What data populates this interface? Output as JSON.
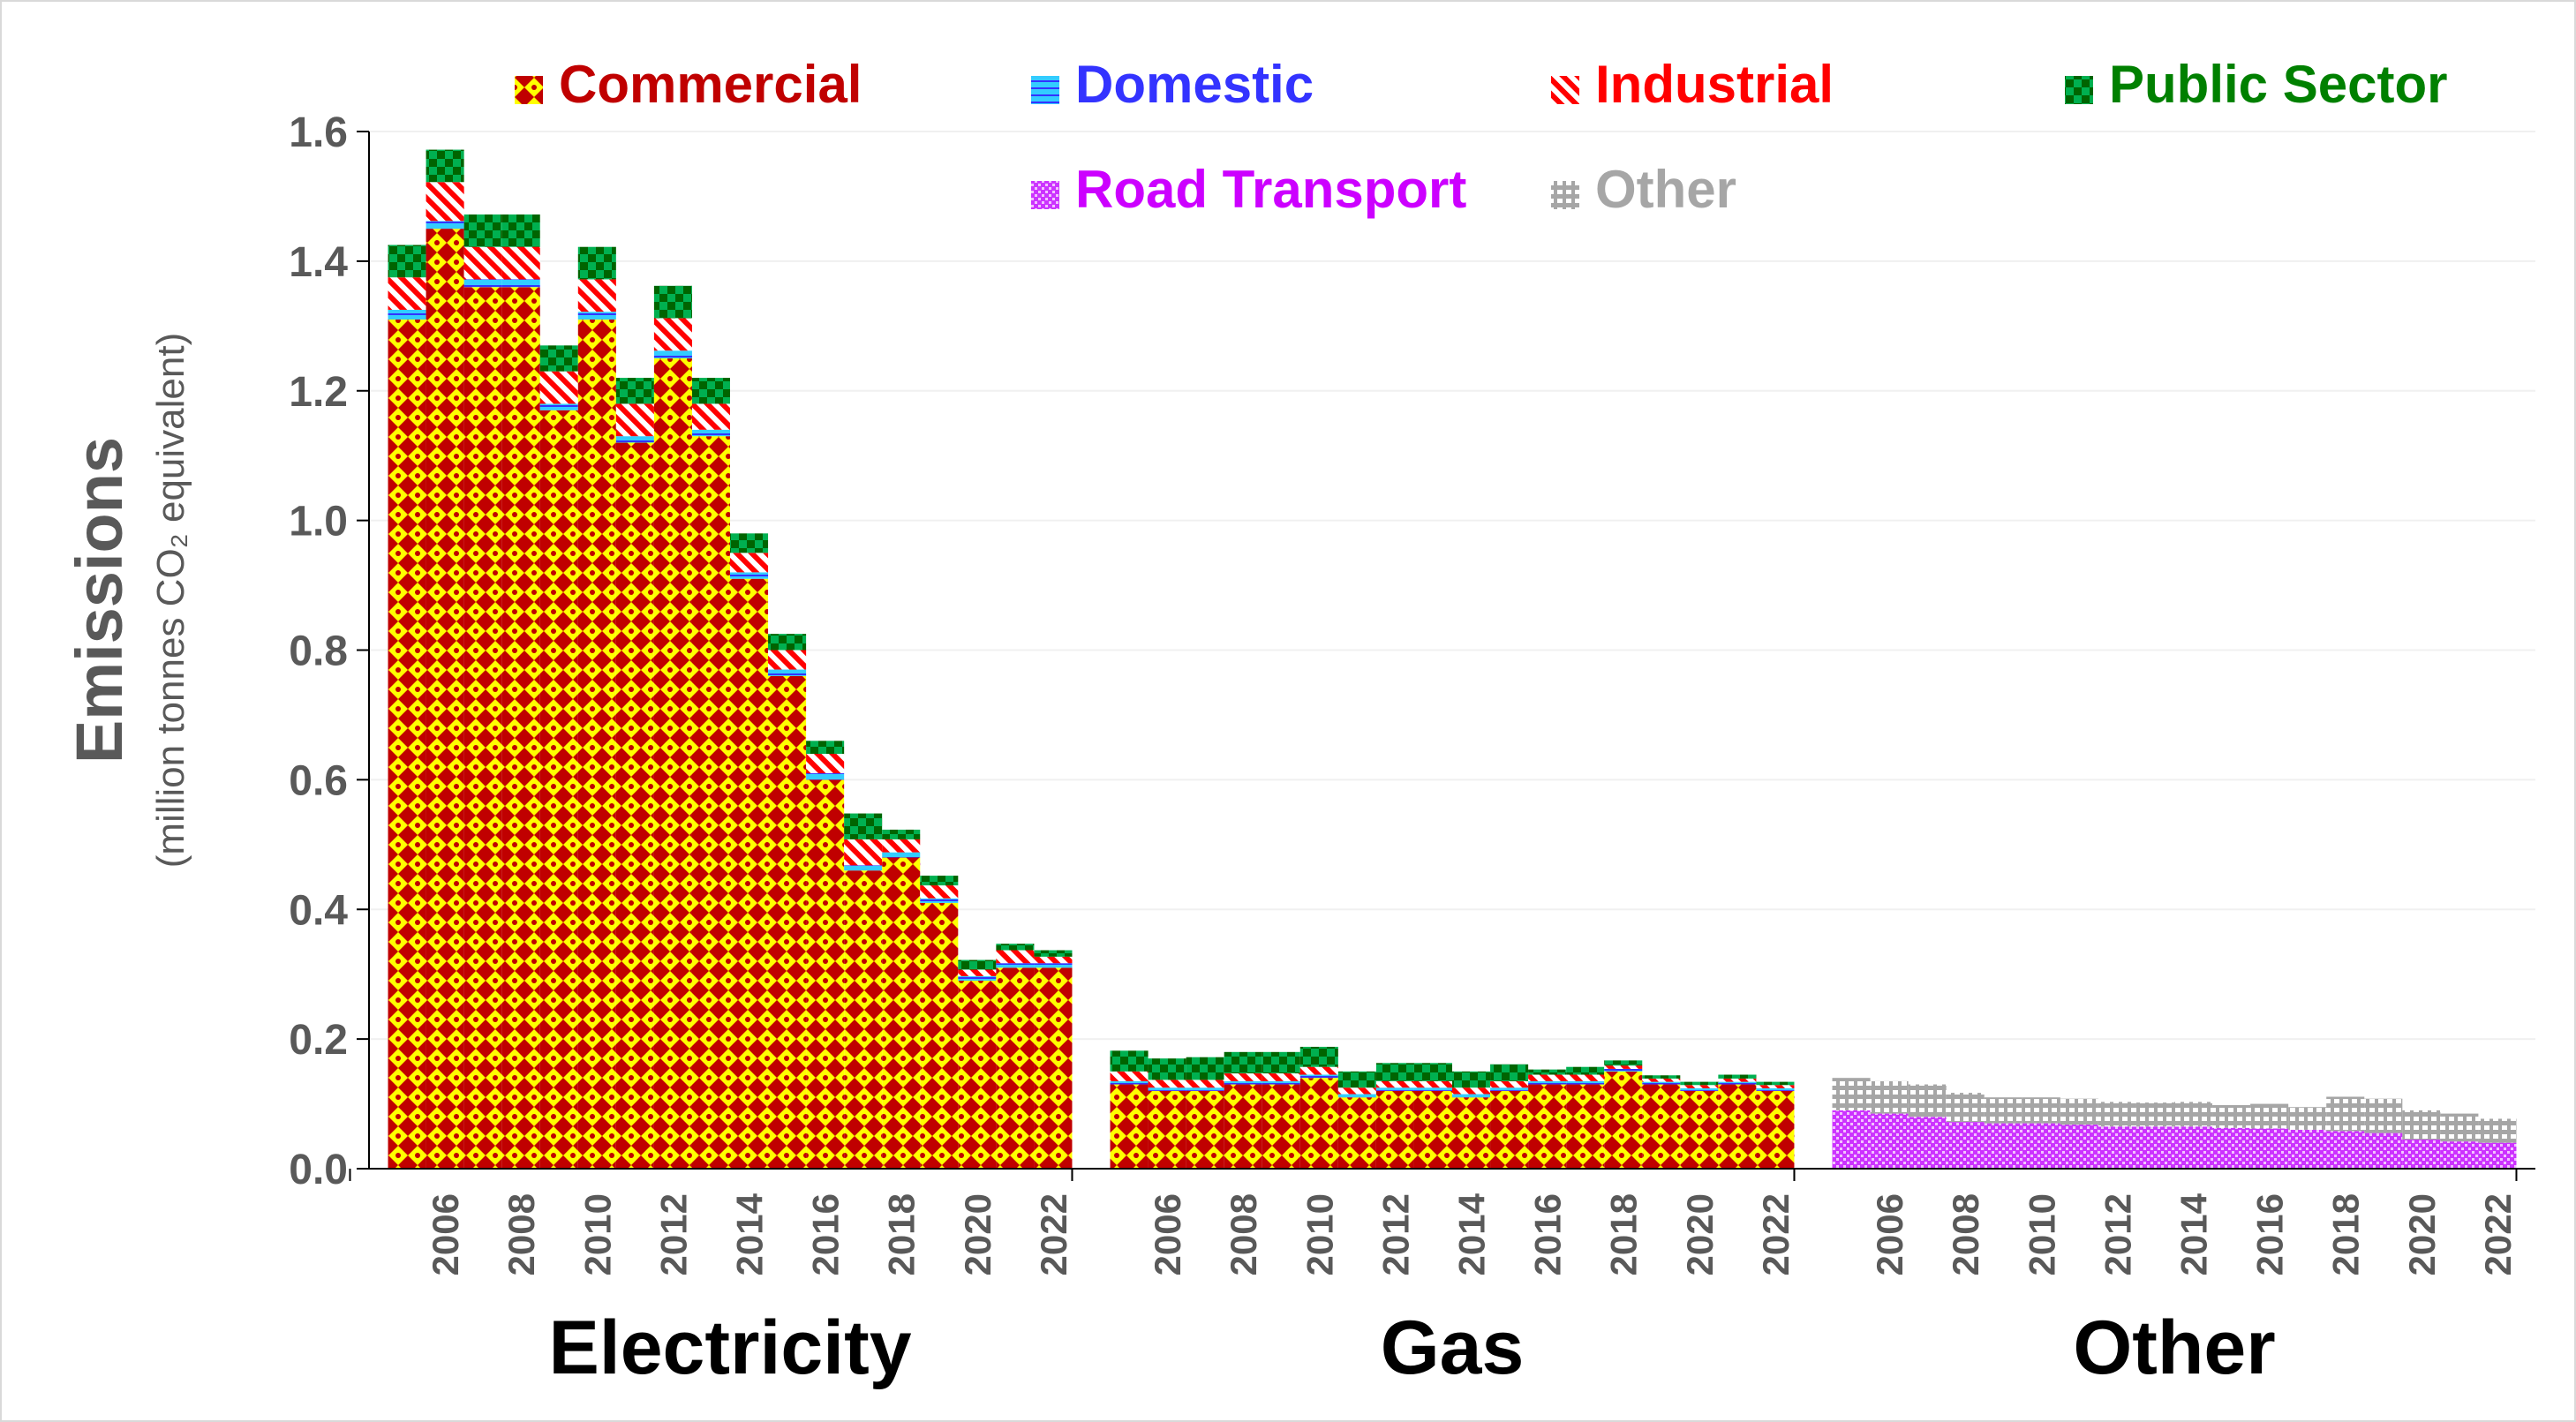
{
  "chart_data": {
    "type": "bar",
    "stacked": true,
    "ylabel": "Emissions",
    "ylabel_sub": "(million tonnes CO₂ equivalent)",
    "ylim": [
      0,
      1.6
    ],
    "yticks": [
      "0.0",
      "0.2",
      "0.4",
      "0.6",
      "0.8",
      "1.0",
      "1.2",
      "1.4",
      "1.6"
    ],
    "grid": true,
    "legend_position": "top",
    "groups": [
      "Electricity",
      "Gas",
      "Other"
    ],
    "x": [
      2005,
      2006,
      2007,
      2008,
      2009,
      2010,
      2011,
      2012,
      2013,
      2014,
      2015,
      2016,
      2017,
      2018,
      2019,
      2020,
      2021,
      2022
    ],
    "x_tick_labels": [
      "2006",
      "2008",
      "2010",
      "2012",
      "2014",
      "2016",
      "2018",
      "2020",
      "2022"
    ],
    "series": [
      {
        "name": "Commercial",
        "color": "#C00000",
        "pattern": "commercial"
      },
      {
        "name": "Domestic",
        "color": "#3333FF",
        "pattern": "domestic"
      },
      {
        "name": "Industrial",
        "color": "#FF0000",
        "pattern": "industrial"
      },
      {
        "name": "Public Sector",
        "color": "#008000",
        "pattern": "public"
      },
      {
        "name": "Road Transport",
        "color": "#CC00FF",
        "pattern": "road"
      },
      {
        "name": "Other",
        "color": "#A6A6A6",
        "pattern": "other"
      }
    ],
    "data": {
      "Electricity": {
        "Commercial": [
          1.31,
          1.45,
          1.36,
          1.36,
          1.17,
          1.31,
          1.12,
          1.25,
          1.13,
          0.91,
          0.76,
          0.6,
          0.46,
          0.48,
          0.41,
          0.29,
          0.31,
          0.31
        ],
        "Domestic": [
          0.015,
          0.012,
          0.012,
          0.012,
          0.01,
          0.012,
          0.01,
          0.012,
          0.01,
          0.01,
          0.01,
          0.01,
          0.008,
          0.008,
          0.007,
          0.007,
          0.007,
          0.007
        ],
        "Industrial": [
          0.05,
          0.06,
          0.05,
          0.05,
          0.05,
          0.05,
          0.05,
          0.05,
          0.04,
          0.03,
          0.03,
          0.03,
          0.04,
          0.02,
          0.02,
          0.01,
          0.02,
          0.01
        ],
        "Public Sector": [
          0.05,
          0.05,
          0.05,
          0.05,
          0.04,
          0.05,
          0.04,
          0.05,
          0.04,
          0.03,
          0.025,
          0.02,
          0.04,
          0.015,
          0.015,
          0.015,
          0.01,
          0.01
        ],
        "Road Transport": [
          0,
          0,
          0,
          0,
          0,
          0,
          0,
          0,
          0,
          0,
          0,
          0,
          0,
          0,
          0,
          0,
          0,
          0
        ],
        "Other": [
          0,
          0,
          0,
          0,
          0,
          0,
          0,
          0,
          0,
          0,
          0,
          0,
          0,
          0,
          0,
          0,
          0,
          0
        ]
      },
      "Gas": {
        "Commercial": [
          0.13,
          0.12,
          0.12,
          0.13,
          0.13,
          0.14,
          0.11,
          0.12,
          0.12,
          0.11,
          0.12,
          0.13,
          0.13,
          0.15,
          0.13,
          0.12,
          0.13,
          0.12
        ],
        "Domestic": [
          0.005,
          0.005,
          0.005,
          0.005,
          0.005,
          0.005,
          0.005,
          0.005,
          0.005,
          0.005,
          0.005,
          0.005,
          0.005,
          0.004,
          0.004,
          0.004,
          0.004,
          0.004
        ],
        "Industrial": [
          0.015,
          0.012,
          0.012,
          0.012,
          0.012,
          0.012,
          0.01,
          0.01,
          0.01,
          0.01,
          0.01,
          0.01,
          0.01,
          0.005,
          0.005,
          0.005,
          0.005,
          0.005
        ],
        "Public Sector": [
          0.032,
          0.033,
          0.035,
          0.033,
          0.033,
          0.031,
          0.025,
          0.028,
          0.028,
          0.025,
          0.026,
          0.008,
          0.012,
          0.008,
          0.005,
          0.005,
          0.006,
          0.005
        ],
        "Road Transport": [
          0,
          0,
          0,
          0,
          0,
          0,
          0,
          0,
          0,
          0,
          0,
          0,
          0,
          0,
          0,
          0,
          0,
          0
        ],
        "Other": [
          0,
          0,
          0,
          0,
          0,
          0,
          0,
          0,
          0,
          0,
          0,
          0,
          0,
          0,
          0,
          0,
          0,
          0
        ]
      },
      "Other": {
        "Commercial": [
          0,
          0,
          0,
          0,
          0,
          0,
          0,
          0,
          0,
          0,
          0,
          0,
          0,
          0,
          0,
          0,
          0,
          0
        ],
        "Domestic": [
          0,
          0,
          0,
          0,
          0,
          0,
          0,
          0,
          0,
          0,
          0,
          0,
          0,
          0,
          0,
          0,
          0,
          0
        ],
        "Industrial": [
          0,
          0,
          0,
          0,
          0,
          0,
          0,
          0,
          0,
          0,
          0,
          0,
          0,
          0,
          0,
          0,
          0,
          0
        ],
        "Public Sector": [
          0,
          0,
          0,
          0,
          0,
          0,
          0,
          0,
          0,
          0,
          0,
          0,
          0,
          0,
          0,
          0,
          0,
          0
        ],
        "Road Transport": [
          0.09,
          0.085,
          0.08,
          0.072,
          0.07,
          0.07,
          0.068,
          0.065,
          0.065,
          0.065,
          0.063,
          0.062,
          0.06,
          0.058,
          0.055,
          0.045,
          0.042,
          0.04
        ],
        "Other": [
          0.05,
          0.05,
          0.05,
          0.045,
          0.04,
          0.04,
          0.04,
          0.038,
          0.037,
          0.038,
          0.035,
          0.038,
          0.035,
          0.053,
          0.053,
          0.045,
          0.043,
          0.037
        ]
      }
    }
  }
}
